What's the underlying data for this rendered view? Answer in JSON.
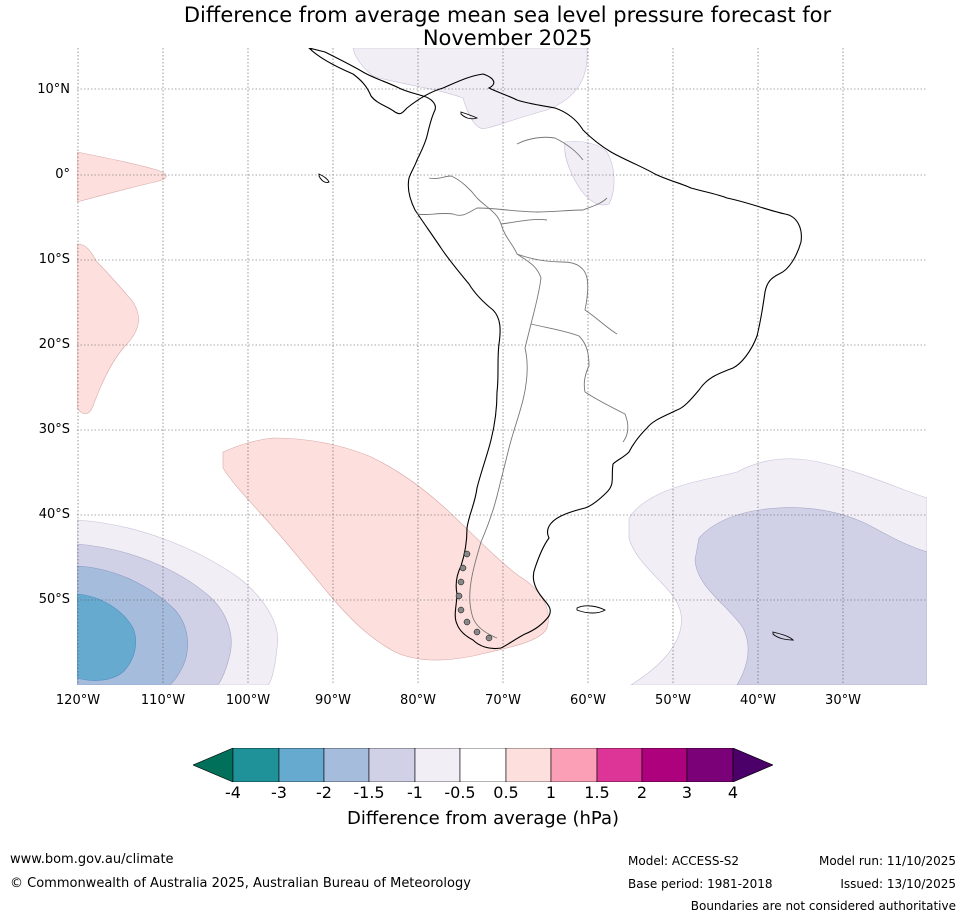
{
  "title": {
    "line1": "Difference from average mean sea level pressure forecast for",
    "line2": "November 2025"
  },
  "axes": {
    "lat_labels": [
      "10°N",
      "0°",
      "10°S",
      "20°S",
      "30°S",
      "40°S",
      "50°S"
    ],
    "lon_labels": [
      "120°W",
      "110°W",
      "100°W",
      "90°W",
      "80°W",
      "70°W",
      "60°W",
      "50°W",
      "40°W",
      "30°W"
    ]
  },
  "colorbar": {
    "ticks": [
      "-4",
      "-3",
      "-2",
      "-1.5",
      "-1",
      "-0.5",
      "0.5",
      "1",
      "1.5",
      "2",
      "3",
      "4"
    ],
    "colors": [
      "#1f9199",
      "#67aacf",
      "#a6bcdc",
      "#d0d1e6",
      "#f1eef6",
      "#ffffff",
      "#fde0dd",
      "#fa9fb5",
      "#dd3497",
      "#ae017e",
      "#7a0177"
    ],
    "under_color": "#00705a",
    "over_color": "#4a0068",
    "label": "Difference from average (hPa)"
  },
  "footer": {
    "website": "www.bom.gov.au/climate",
    "copyright": "© Commonwealth of Australia 2025, Australian Bureau of Meteorology",
    "model": "Model: ACCESS-S2",
    "base_period": "Base period: 1981-2018",
    "model_run": "Model run: 11/10/2025",
    "issued": "Issued: 13/10/2025",
    "disclaimer": "Boundaries are not considered authoritative"
  }
}
